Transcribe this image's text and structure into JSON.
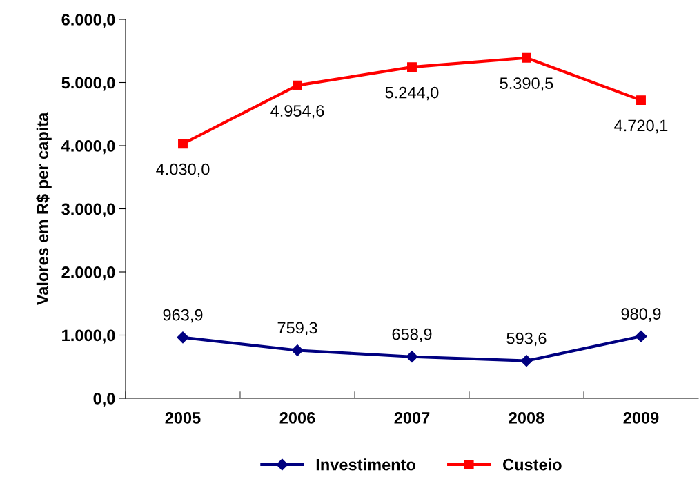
{
  "chart_data": {
    "type": "line",
    "ylabel": "Valores em R$ per capita",
    "categories": [
      "2005",
      "2006",
      "2007",
      "2008",
      "2009"
    ],
    "series": [
      {
        "name": "Investimento",
        "color": "#000080",
        "marker": "diamond",
        "values": [
          963.9,
          759.3,
          658.9,
          593.6,
          980.9
        ],
        "value_labels": [
          "963,9",
          "759,3",
          "658,9",
          "593,6",
          "980,9"
        ]
      },
      {
        "name": "Custeio",
        "color": "#ff0000",
        "marker": "square",
        "values": [
          4030.0,
          4954.6,
          5244.0,
          5390.5,
          4720.1
        ],
        "value_labels": [
          "4.030,0",
          "4.954,6",
          "5.244,0",
          "5.390,5",
          "4.720,1"
        ]
      }
    ],
    "ylim": [
      0,
      6000
    ],
    "yticks": [
      {
        "value": 0,
        "label": "0,0"
      },
      {
        "value": 1000,
        "label": "1.000,0"
      },
      {
        "value": 2000,
        "label": "2.000,0"
      },
      {
        "value": 3000,
        "label": "3.000,0"
      },
      {
        "value": 4000,
        "label": "4.000,0"
      },
      {
        "value": 5000,
        "label": "5.000,0"
      },
      {
        "value": 6000,
        "label": "6.000,0"
      }
    ],
    "grid": false,
    "legend": "bottom",
    "line_style": "solid"
  }
}
